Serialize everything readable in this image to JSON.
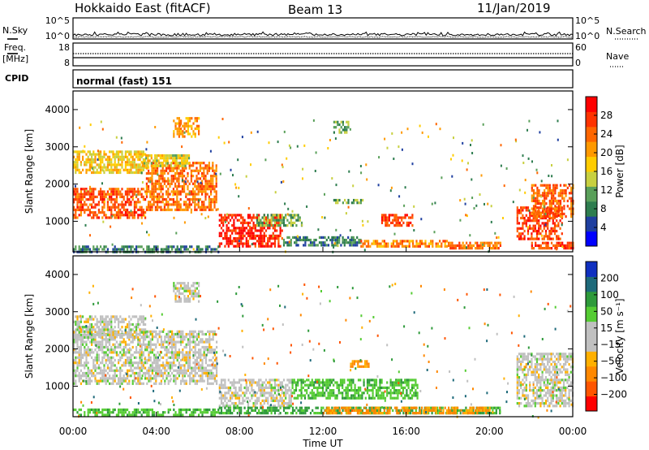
{
  "header": {
    "station": "Hokkaido East (fitACF)",
    "beam": "Beam 13",
    "date": "11/Jan/2019"
  },
  "left_labels": {
    "nsky": "N.Sky",
    "freq_line1": "Freq.",
    "freq_line2": "[MHz]",
    "cpid": "CPID"
  },
  "right_labels": {
    "nsearch": "N.Search",
    "nave": "Nave"
  },
  "cpid_text": "normal (fast) 151",
  "colors": {
    "power_scale": [
      "#0000ff",
      "#1f3fa0",
      "#2e7d4f",
      "#5aa05a",
      "#c8d040",
      "#ffcc00",
      "#ff9900",
      "#ff6600",
      "#ff3300",
      "#ff0000"
    ],
    "velocity_scale": [
      "#ff0000",
      "#ff5500",
      "#ff8800",
      "#ffb000",
      "#c0c0c0",
      "#c0c0c0",
      "#55cc33",
      "#2e9a3a",
      "#1e6a7a",
      "#1030c0"
    ]
  },
  "chart_data": [
    {
      "id": "nsky",
      "type": "line",
      "ylabel": "N.Sky",
      "yticks": [
        "10^5",
        "10^0"
      ],
      "right_yticks": [
        "10^5",
        "10^0"
      ]
    },
    {
      "id": "freq",
      "type": "line",
      "ylabel": "Freq. [MHz]",
      "yticks": [
        "18",
        "8"
      ],
      "right_yticks": [
        "60",
        "0"
      ]
    },
    {
      "id": "power",
      "type": "heatmap",
      "ylabel": "Slant Range [km]",
      "ylim": [
        180,
        4500
      ],
      "yticks": [
        "4000",
        "3000",
        "2000",
        "1000"
      ],
      "colorbar_label": "Power [dB]",
      "colorbar_ticks": [
        "28",
        "24",
        "20",
        "16",
        "12",
        "8",
        "4"
      ],
      "blobs": [
        {
          "t0": 0.0,
          "t1": 3.5,
          "r0": 1100,
          "r1": 1900,
          "v": 26
        },
        {
          "t0": 3.5,
          "t1": 6.9,
          "r0": 1300,
          "r1": 2600,
          "v": 24
        },
        {
          "t0": 0.0,
          "t1": 3.5,
          "r0": 2300,
          "r1": 2900,
          "v": 18
        },
        {
          "t0": 3.3,
          "t1": 5.6,
          "r0": 2500,
          "r1": 2800,
          "v": 17
        },
        {
          "t0": 4.8,
          "t1": 6.0,
          "r0": 3300,
          "r1": 3800,
          "v": 22
        },
        {
          "t0": 7.0,
          "t1": 10.0,
          "r0": 350,
          "r1": 1200,
          "v": 29
        },
        {
          "t0": 8.8,
          "t1": 11.0,
          "r0": 900,
          "r1": 1200,
          "v": 13
        },
        {
          "t0": 12.5,
          "t1": 14.0,
          "r0": 1500,
          "r1": 1600,
          "v": 13
        },
        {
          "t0": 14.8,
          "t1": 16.3,
          "r0": 900,
          "r1": 1200,
          "v": 27
        },
        {
          "t0": 10.0,
          "t1": 13.8,
          "r0": 350,
          "r1": 600,
          "v": 10
        },
        {
          "t0": 13.8,
          "t1": 18.0,
          "r0": 300,
          "r1": 500,
          "v": 23
        },
        {
          "t0": 18.0,
          "t1": 20.5,
          "r0": 300,
          "r1": 450,
          "v": 24
        },
        {
          "t0": 21.3,
          "t1": 23.5,
          "r0": 500,
          "r1": 1400,
          "v": 27
        },
        {
          "t0": 22.0,
          "t1": 24.0,
          "r0": 1100,
          "r1": 2000,
          "v": 25
        },
        {
          "t0": 22.0,
          "t1": 24.0,
          "r0": 250,
          "r1": 450,
          "v": 27
        },
        {
          "t0": 0.0,
          "t1": 7.0,
          "r0": 200,
          "r1": 350,
          "v": 10
        },
        {
          "t0": 12.5,
          "t1": 13.2,
          "r0": 3400,
          "r1": 3700,
          "v": 13
        }
      ]
    },
    {
      "id": "velocity",
      "type": "heatmap",
      "xlabel": "Time UT",
      "ylabel": "Slant Range [km]",
      "ylim": [
        180,
        4500
      ],
      "yticks": [
        "4000",
        "3000",
        "2000",
        "1000"
      ],
      "xticks": [
        "00:00",
        "04:00",
        "08:00",
        "12:00",
        "16:00",
        "20:00",
        "00:00"
      ],
      "colorbar_label": "Velocity [m s⁻¹]",
      "colorbar_ticks": [
        "200",
        "100",
        "50",
        "15",
        "−15",
        "−50",
        "−100",
        "−200"
      ],
      "blobs": [
        {
          "t0": 0.0,
          "t1": 6.9,
          "r0": 1100,
          "r1": 2500,
          "v": 0
        },
        {
          "t0": 0.0,
          "t1": 3.5,
          "r0": 2300,
          "r1": 2900,
          "v": 0
        },
        {
          "t0": 4.8,
          "t1": 6.0,
          "r0": 3300,
          "r1": 3800,
          "v": 0
        },
        {
          "t0": 7.0,
          "t1": 10.5,
          "r0": 500,
          "r1": 1200,
          "v": 0
        },
        {
          "t0": 10.5,
          "t1": 16.5,
          "r0": 700,
          "r1": 1200,
          "v": 40
        },
        {
          "t0": 13.3,
          "t1": 14.2,
          "r0": 1500,
          "r1": 1700,
          "v": -60
        },
        {
          "t0": 7.0,
          "t1": 20.5,
          "r0": 250,
          "r1": 450,
          "v": 60
        },
        {
          "t0": 12.0,
          "t1": 20.0,
          "r0": 300,
          "r1": 450,
          "v": -60
        },
        {
          "t0": 21.3,
          "t1": 24.0,
          "r0": 500,
          "r1": 1900,
          "v": 0
        },
        {
          "t0": 0.0,
          "t1": 7.0,
          "r0": 200,
          "r1": 400,
          "v": 40
        }
      ]
    }
  ]
}
